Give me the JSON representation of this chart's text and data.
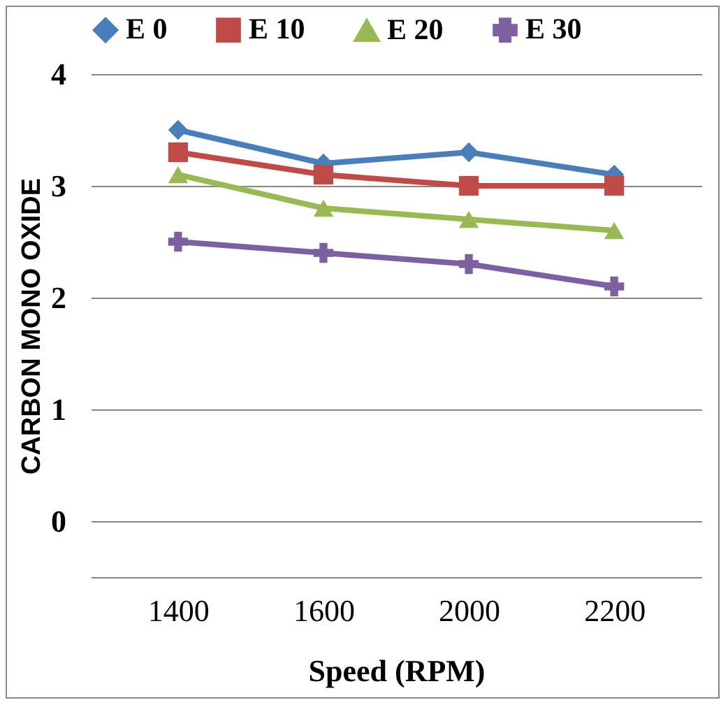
{
  "chart_data": {
    "type": "line",
    "xlabel": "Speed (RPM)",
    "ylabel": "CARBON MONO OXIDE",
    "categories": [
      "1400",
      "1600",
      "2000",
      "2200"
    ],
    "series": [
      {
        "name": "E 0",
        "color": "#4a7ebb",
        "marker": "diamond",
        "values": [
          3.5,
          3.2,
          3.3,
          3.1
        ]
      },
      {
        "name": "E 10",
        "color": "#be4b48",
        "marker": "square",
        "values": [
          3.3,
          3.1,
          3.0,
          3.0
        ]
      },
      {
        "name": "E 20",
        "color": "#98b954",
        "marker": "triangle",
        "values": [
          3.1,
          2.8,
          2.7,
          2.6
        ]
      },
      {
        "name": "E 30",
        "color": "#7d60a0",
        "marker": "cross",
        "values": [
          2.5,
          2.4,
          2.3,
          2.1
        ]
      }
    ],
    "ylim": [
      -0.5,
      4
    ],
    "yticks": [
      0,
      1,
      2,
      3,
      4
    ],
    "grid": "y",
    "legend": "top"
  }
}
